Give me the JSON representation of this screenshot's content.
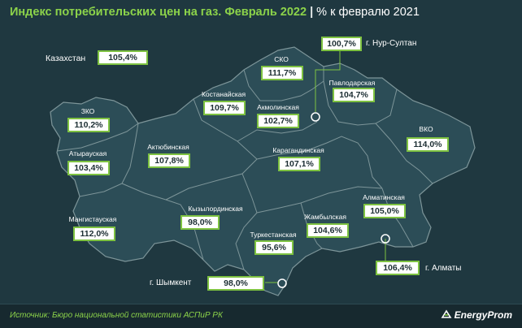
{
  "title": {
    "main": "Индекс потребительских цен на газ. Февраль 2022",
    "separator": "|",
    "subtitle": "% к февралю 2021"
  },
  "kazakhstan": {
    "label": "Казахстан",
    "value": "105,4%"
  },
  "regions": [
    {
      "name": "ЗКО",
      "value": "110,2%"
    },
    {
      "name": "Атырауская",
      "value": "103,4%"
    },
    {
      "name": "Мангистауская",
      "value": "112,0%"
    },
    {
      "name": "Актюбинская",
      "value": "107,8%"
    },
    {
      "name": "Костанайская",
      "value": "109,7%"
    },
    {
      "name": "СКО",
      "value": "111,7%"
    },
    {
      "name": "Акмолинская",
      "value": "102,7%"
    },
    {
      "name": "Павлодарская",
      "value": "104,7%"
    },
    {
      "name": "ВКО",
      "value": "114,0%"
    },
    {
      "name": "Карагандинская",
      "value": "107,1%"
    },
    {
      "name": "Кызылординская",
      "value": "98,0%"
    },
    {
      "name": "Туркестанская",
      "value": "95,6%"
    },
    {
      "name": "Жамбылская",
      "value": "104,6%"
    },
    {
      "name": "Алматинская",
      "value": "105,0%"
    }
  ],
  "cities": [
    {
      "name": "г. Нур-Султан",
      "value": "100,7%"
    },
    {
      "name": "г. Шымкент",
      "value": "98,0%"
    },
    {
      "name": "г. Алматы",
      "value": "106,4%"
    }
  ],
  "footer": {
    "source": "Источник: Бюро национальной статистики АСПиР РК",
    "brand": "EnergyProm"
  },
  "colors": {
    "background": "#1f3840",
    "map_fill": "#2c4d57",
    "border": "#7d9599",
    "accent_green": "#8cd34a"
  }
}
